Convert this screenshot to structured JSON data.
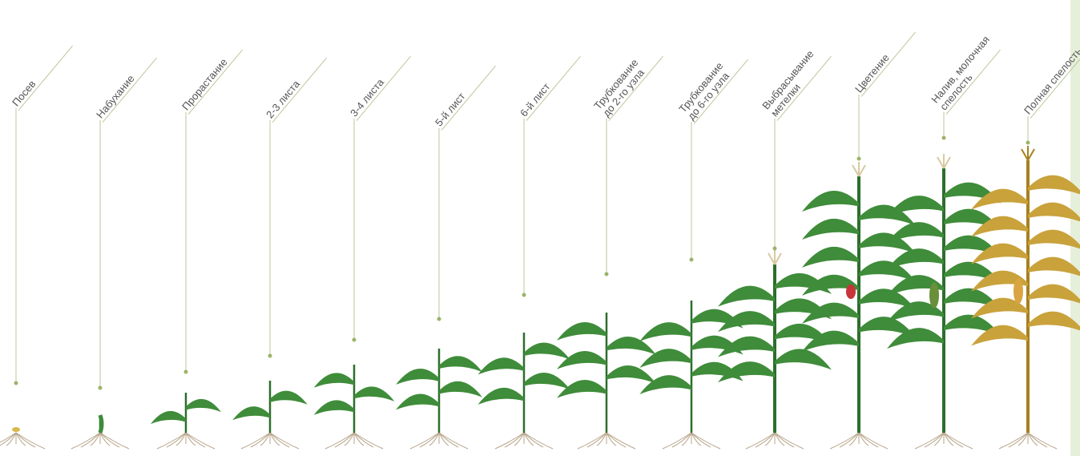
{
  "stages": [
    {
      "label_lines": [
        "Посев"
      ]
    },
    {
      "label_lines": [
        "Набухание"
      ]
    },
    {
      "label_lines": [
        "Прорастание"
      ]
    },
    {
      "label_lines": [
        "2-3 листа"
      ]
    },
    {
      "label_lines": [
        "3-4 листа"
      ]
    },
    {
      "label_lines": [
        "5-й лист"
      ]
    },
    {
      "label_lines": [
        "6-й лист"
      ]
    },
    {
      "label_lines": [
        "Трубкование",
        "до 2-го узла"
      ]
    },
    {
      "label_lines": [
        "Трубкование",
        "до 6-го узла"
      ]
    },
    {
      "label_lines": [
        "Выбрасывание",
        "метелки"
      ]
    },
    {
      "label_lines": [
        "Цветение"
      ]
    },
    {
      "label_lines": [
        "Налив, молочная",
        "спелость"
      ]
    },
    {
      "label_lines": [
        "Полная спелость"
      ]
    }
  ]
}
